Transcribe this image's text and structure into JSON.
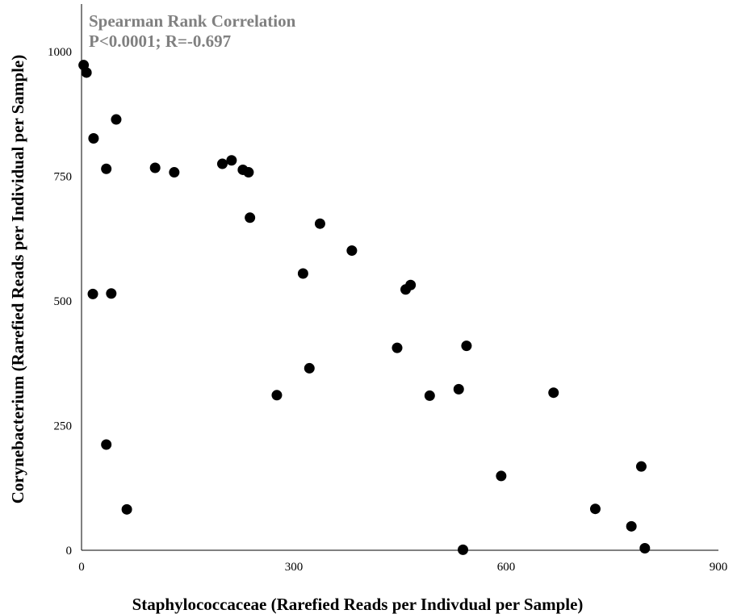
{
  "chart_data": {
    "type": "scatter",
    "xlabel": "Staphylococcaceae (Rarefied Reads per Indivdual per Sample)",
    "ylabel": "Corynebacterium (Rarefied Reads per Individual per Sample)",
    "xlim": [
      0,
      900
    ],
    "ylim": [
      0,
      1000
    ],
    "x_ticks": [
      "0",
      "300",
      "600",
      "900"
    ],
    "y_ticks": [
      "0",
      "250",
      "500",
      "750",
      "1000"
    ],
    "x_tick_values": [
      0,
      300,
      600,
      900
    ],
    "y_tick_values": [
      0,
      250,
      500,
      750,
      1000
    ],
    "grid": false,
    "annotation": {
      "line1": "Spearman Rank Correlation",
      "line2": "P<0.0001; R=-0.697",
      "color": "#808080"
    },
    "marker_color": "#000000",
    "points": [
      {
        "x": 3,
        "y": 973
      },
      {
        "x": 7,
        "y": 958
      },
      {
        "x": 49,
        "y": 864
      },
      {
        "x": 17,
        "y": 826
      },
      {
        "x": 35,
        "y": 765
      },
      {
        "x": 104,
        "y": 767
      },
      {
        "x": 131,
        "y": 758
      },
      {
        "x": 199,
        "y": 775
      },
      {
        "x": 212,
        "y": 782
      },
      {
        "x": 228,
        "y": 763
      },
      {
        "x": 236,
        "y": 758
      },
      {
        "x": 238,
        "y": 667
      },
      {
        "x": 337,
        "y": 655
      },
      {
        "x": 382,
        "y": 601
      },
      {
        "x": 313,
        "y": 555
      },
      {
        "x": 16,
        "y": 514
      },
      {
        "x": 42,
        "y": 515
      },
      {
        "x": 458,
        "y": 523
      },
      {
        "x": 465,
        "y": 532
      },
      {
        "x": 446,
        "y": 406
      },
      {
        "x": 544,
        "y": 410
      },
      {
        "x": 322,
        "y": 365
      },
      {
        "x": 276,
        "y": 311
      },
      {
        "x": 492,
        "y": 310
      },
      {
        "x": 533,
        "y": 323
      },
      {
        "x": 667,
        "y": 316
      },
      {
        "x": 35,
        "y": 212
      },
      {
        "x": 593,
        "y": 149
      },
      {
        "x": 791,
        "y": 168
      },
      {
        "x": 64,
        "y": 82
      },
      {
        "x": 726,
        "y": 83
      },
      {
        "x": 777,
        "y": 48
      },
      {
        "x": 539,
        "y": 1
      },
      {
        "x": 796,
        "y": 4
      }
    ]
  }
}
